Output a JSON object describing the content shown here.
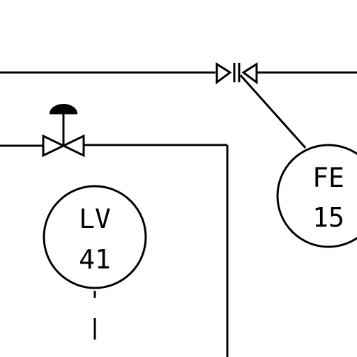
{
  "instruments": [
    {
      "id": "lv41",
      "function": "LV",
      "loop": "41"
    },
    {
      "id": "fe15",
      "function": "FE",
      "loop": "15"
    }
  ],
  "symbols": {
    "control_valve": "globe-valve-with-diaphragm-actuator",
    "flow_element": "orifice-plate-flow-element"
  },
  "colors": {
    "line": "#000000",
    "background": "#ffffff"
  }
}
